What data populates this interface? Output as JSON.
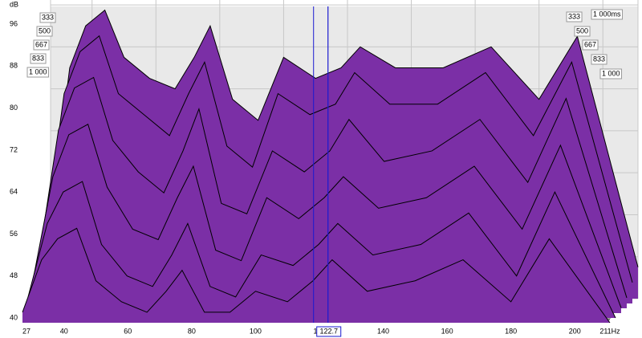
{
  "chart_data": {
    "type": "waterfall",
    "y_axis_label": "dB",
    "x": [
      27,
      33,
      38,
      44,
      50,
      58,
      66,
      72,
      77,
      84,
      92,
      100,
      110,
      118,
      124,
      135,
      150,
      165,
      180,
      192,
      211
    ],
    "series": [
      {
        "color": "#7b2fa6",
        "values": [
          55,
          84,
          92,
          95,
          86,
          82,
          80,
          86,
          92,
          78,
          74,
          86,
          82,
          84,
          88,
          84,
          84,
          88,
          78,
          90,
          46
        ]
      },
      {
        "color": "#7b2fa6",
        "values": [
          53,
          80,
          88,
          91,
          80,
          76,
          72,
          80,
          86,
          70,
          66,
          80,
          76,
          78,
          84,
          78,
          78,
          84,
          72,
          86,
          44
        ]
      },
      {
        "color": "#7b2fa6",
        "values": [
          50,
          74,
          82,
          84,
          72,
          66,
          62,
          70,
          78,
          60,
          58,
          70,
          66,
          70,
          76,
          68,
          70,
          76,
          64,
          80,
          42
        ]
      },
      {
        "color": "#7b2fa6",
        "values": [
          47,
          66,
          74,
          76,
          64,
          56,
          54,
          62,
          68,
          52,
          50,
          62,
          58,
          62,
          66,
          60,
          62,
          68,
          56,
          72,
          41
        ]
      },
      {
        "color": "#7b2fa6",
        "values": [
          44,
          58,
          64,
          66,
          54,
          48,
          46,
          52,
          58,
          46,
          44,
          52,
          50,
          54,
          58,
          52,
          54,
          60,
          48,
          64,
          40
        ]
      },
      {
        "color": "#7b2fa6",
        "values": [
          42,
          52,
          56,
          58,
          48,
          44,
          42,
          46,
          50,
          42,
          42,
          46,
          44,
          48,
          52,
          46,
          48,
          52,
          44,
          56,
          40
        ]
      }
    ],
    "xlim": [
      27,
      211
    ],
    "ylim": [
      40,
      98
    ],
    "xticks": [
      27,
      40,
      60,
      80,
      100,
      120,
      140,
      160,
      180,
      200,
      {
        "value": 211,
        "label": "211Hz"
      }
    ],
    "yticks": [
      40,
      48,
      56,
      64,
      72,
      80,
      88,
      96
    ],
    "left_time_labels": [
      "333",
      "500",
      "667",
      "833",
      "1 000"
    ],
    "right_time_labels": [
      "333",
      "1 000ms",
      "500",
      "667",
      "833",
      "1 000"
    ],
    "cursor": 122.7,
    "grid": true
  }
}
